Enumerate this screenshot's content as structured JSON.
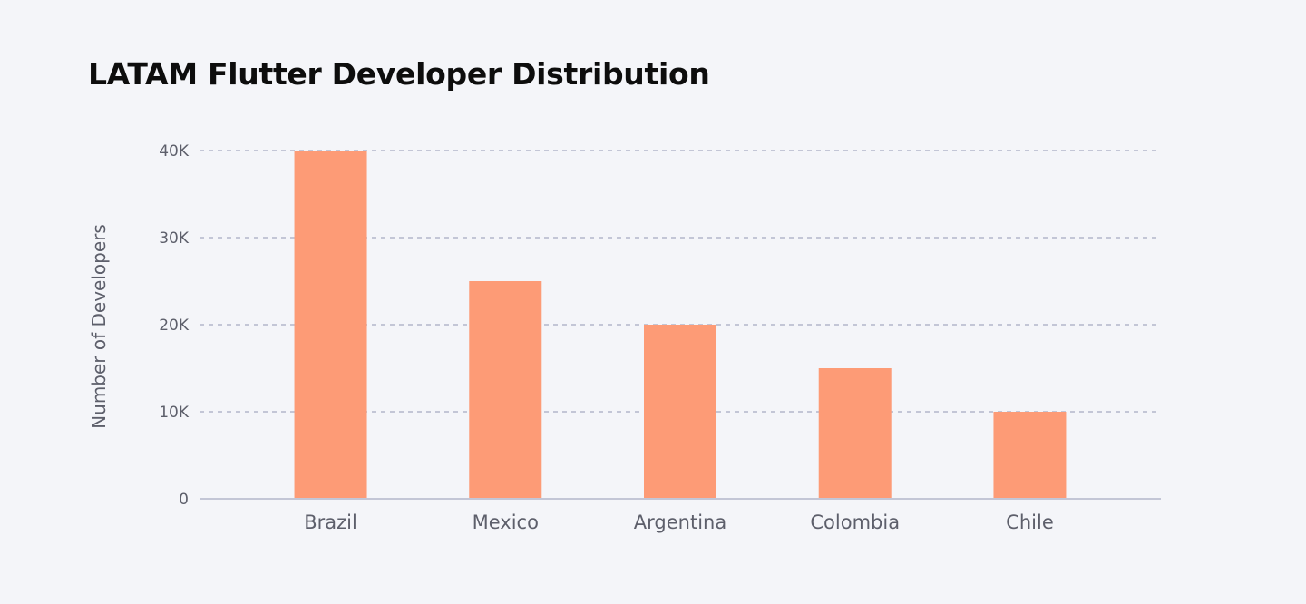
{
  "chart_data": {
    "type": "bar",
    "title": "LATAM Flutter Developer Distribution",
    "ylabel": "Number of Developers",
    "xlabel": "",
    "categories": [
      "Brazil",
      "Mexico",
      "Argentina",
      "Colombia",
      "Chile"
    ],
    "values": [
      40000,
      25000,
      20000,
      15000,
      10000
    ],
    "ylim": [
      0,
      40000
    ],
    "yticks": [
      0,
      10000,
      20000,
      30000,
      40000
    ],
    "ytick_labels": [
      "0",
      "10K",
      "20K",
      "30K",
      "40K"
    ],
    "grid": true,
    "grid_style": "dashed",
    "bar_color": "#fd9b76",
    "grid_color": "#c3c6d6",
    "axis_color": "#c3c6d6",
    "text_color": "#5d5f6b",
    "title_color": "#0d0d0d",
    "background_color": "#f4f5f9"
  }
}
